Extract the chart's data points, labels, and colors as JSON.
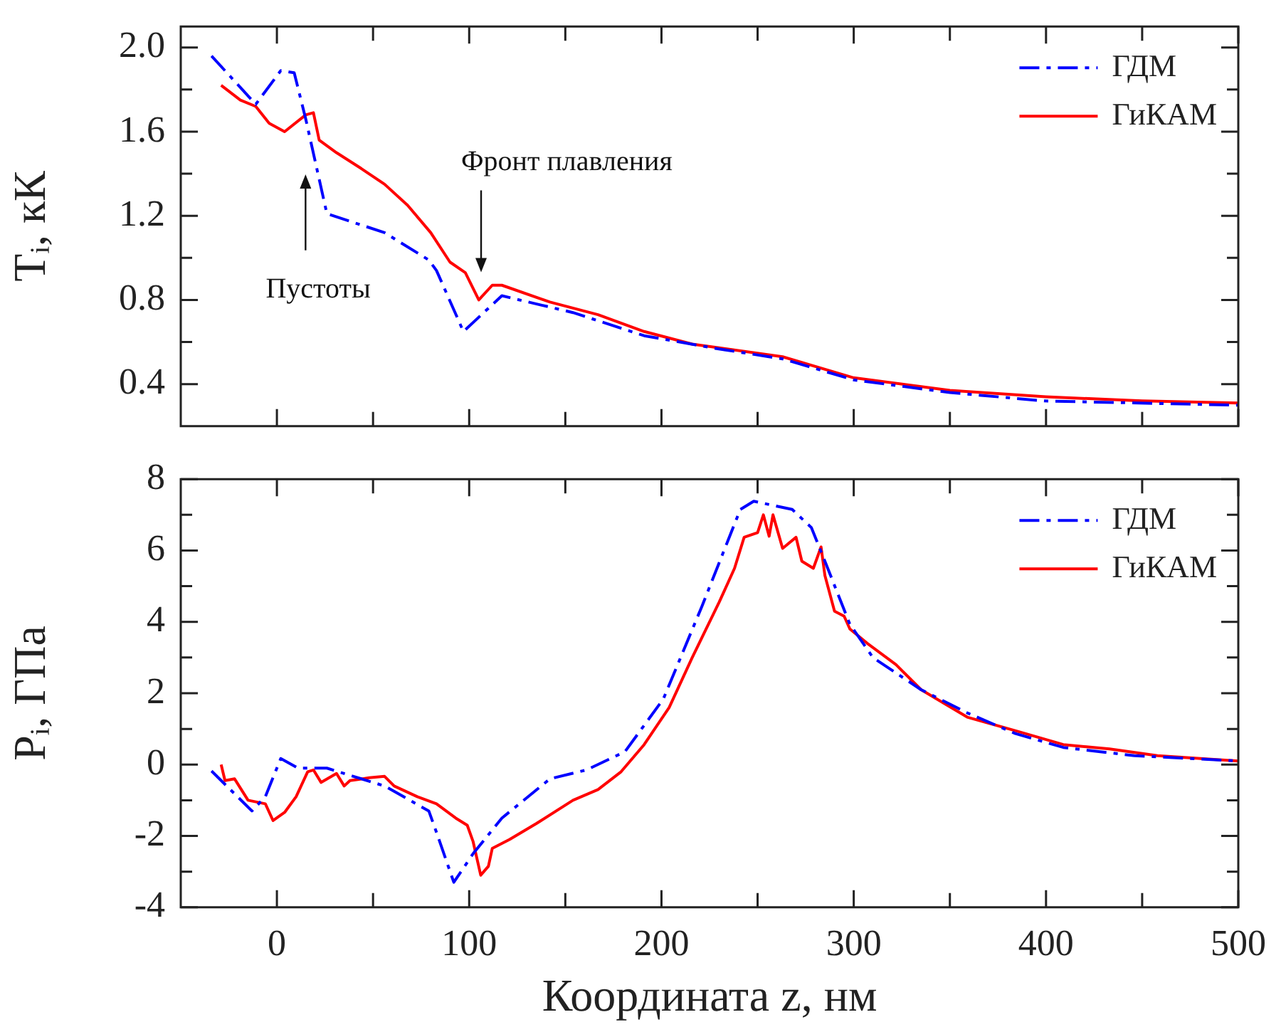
{
  "chart_data": [
    {
      "type": "line",
      "ylabel": "Tᵢ, кК",
      "xlim": [
        -50,
        500
      ],
      "ylim": [
        0.2,
        2.1
      ],
      "tick_labels": "y",
      "legend": "top right",
      "grid": false,
      "marker": "none",
      "xticks": [
        0,
        {
          "value": 50,
          "label": null
        },
        100,
        {
          "value": 150,
          "label": null
        },
        200,
        {
          "value": 250,
          "label": null
        },
        300,
        {
          "value": 350,
          "label": null
        },
        400,
        {
          "value": 450,
          "label": null
        },
        500
      ],
      "yticks": [
        0.4,
        {
          "value": 0.6,
          "label": null
        },
        0.8,
        {
          "value": 1.0,
          "label": null
        },
        1.2,
        {
          "value": 1.4,
          "label": null
        },
        1.6,
        {
          "value": 1.8,
          "label": null
        },
        {
          "value": 2.0,
          "label": "2.0"
        }
      ],
      "annotations": [
        "Пустоты",
        "Фронт плавления"
      ],
      "series": [
        {
          "name": "ГДМ",
          "color": "#0000ff",
          "line_style": "dashed",
          "x": [
            -34,
            -11,
            2,
            9,
            15,
            26,
            56,
            79,
            83,
            97,
            117,
            154,
            191,
            228,
            263,
            300,
            350,
            399,
            448,
            500
          ],
          "values": [
            1.96,
            1.73,
            1.89,
            1.88,
            1.66,
            1.21,
            1.12,
            0.99,
            0.94,
            0.65,
            0.82,
            0.74,
            0.63,
            0.57,
            0.52,
            0.42,
            0.36,
            0.32,
            0.31,
            0.3
          ]
        },
        {
          "name": "ГиКАМ",
          "color": "#ff0000",
          "line_style": "solid",
          "x": [
            -29,
            -19,
            -11,
            -4,
            4,
            15,
            19,
            22,
            31,
            43,
            56,
            68,
            80,
            90,
            98,
            105,
            112,
            117,
            142,
            167,
            191,
            216,
            263,
            300,
            350,
            400,
            450,
            500
          ],
          "values": [
            1.82,
            1.75,
            1.72,
            1.64,
            1.6,
            1.68,
            1.69,
            1.56,
            1.5,
            1.43,
            1.35,
            1.25,
            1.12,
            0.98,
            0.93,
            0.8,
            0.87,
            0.87,
            0.79,
            0.73,
            0.65,
            0.59,
            0.53,
            0.43,
            0.37,
            0.34,
            0.32,
            0.31
          ]
        }
      ]
    },
    {
      "type": "line",
      "ylabel": "Pᵢ, ГПа",
      "xlabel": "Координата z, нм",
      "xlim": [
        -50,
        500
      ],
      "ylim": [
        -4,
        8
      ],
      "legend": "top right",
      "grid": false,
      "marker": "none",
      "xticks": [
        0,
        {
          "value": 50,
          "label": null
        },
        100,
        {
          "value": 150,
          "label": null
        },
        200,
        {
          "value": 250,
          "label": null
        },
        300,
        {
          "value": 350,
          "label": null
        },
        400,
        {
          "value": 450,
          "label": null
        },
        500
      ],
      "yticks": [
        -4,
        {
          "value": -3,
          "label": null
        },
        -2,
        {
          "value": -1,
          "label": null
        },
        0,
        {
          "value": 1,
          "label": null
        },
        2,
        {
          "value": 3,
          "label": null
        },
        4,
        {
          "value": 5,
          "label": null
        },
        6,
        {
          "value": 7,
          "label": null
        },
        8
      ],
      "series": [
        {
          "name": "ГДМ",
          "color": "#0000ff",
          "line_style": "dashed",
          "x": [
            -34,
            -13,
            -6,
            2,
            11,
            26,
            56,
            79,
            83,
            92,
            102,
            117,
            142,
            161,
            181,
            201,
            221,
            241,
            248,
            268,
            278,
            285,
            298,
            310,
            335,
            359,
            384,
            409,
            446,
            500
          ],
          "values": [
            -0.18,
            -1.3,
            -0.9,
            0.17,
            -0.1,
            -0.1,
            -0.6,
            -1.3,
            -1.9,
            -3.3,
            -2.5,
            -1.5,
            -0.4,
            -0.15,
            0.36,
            1.84,
            4.43,
            7.15,
            7.38,
            7.15,
            6.64,
            5.7,
            3.93,
            3.0,
            2.1,
            1.45,
            0.87,
            0.48,
            0.25,
            0.1
          ]
        },
        {
          "name": "ГиКАМ",
          "color": "#ff0000",
          "line_style": "solid",
          "x": [
            -29,
            -27,
            -22,
            -15,
            -6,
            -2,
            4,
            10,
            16,
            19,
            23,
            31,
            35,
            38,
            48,
            56,
            61,
            73,
            83,
            93,
            99,
            102,
            106,
            110,
            112,
            121,
            135,
            154,
            167,
            179,
            191,
            204,
            216,
            230,
            238,
            243,
            250,
            253,
            256,
            258,
            263,
            270,
            273,
            279,
            283,
            285,
            290,
            295,
            298,
            307,
            322,
            335,
            359,
            384,
            409,
            433,
            458,
            500
          ],
          "values": [
            0.0,
            -0.45,
            -0.4,
            -1.0,
            -1.1,
            -1.57,
            -1.34,
            -0.9,
            -0.2,
            -0.15,
            -0.5,
            -0.25,
            -0.6,
            -0.45,
            -0.37,
            -0.33,
            -0.6,
            -0.9,
            -1.1,
            -1.5,
            -1.7,
            -2.15,
            -3.1,
            -2.85,
            -2.35,
            -2.1,
            -1.65,
            -1.0,
            -0.7,
            -0.2,
            0.56,
            1.6,
            3.0,
            4.55,
            5.5,
            6.37,
            6.5,
            7.0,
            6.4,
            7.0,
            6.06,
            6.37,
            5.7,
            5.5,
            6.1,
            5.3,
            4.3,
            4.16,
            3.8,
            3.4,
            2.8,
            2.1,
            1.33,
            0.95,
            0.56,
            0.44,
            0.25,
            0.1
          ]
        }
      ]
    }
  ]
}
